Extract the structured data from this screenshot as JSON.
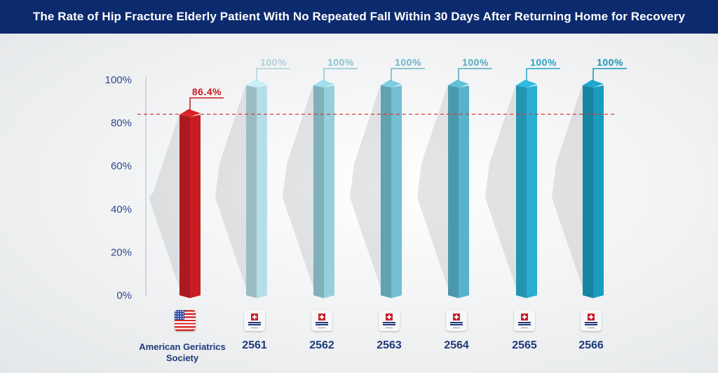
{
  "title": "The Rate of Hip Fracture Elderly Patient With No Repeated Fall Within 30 Days After Returning Home for Recovery",
  "chart_data": {
    "type": "bar",
    "title": "The Rate of Hip Fracture Elderly Patient With No Repeated Fall Within 30 Days After Returning Home for Recovery",
    "categories": [
      "American Geriatrics Society",
      "2561",
      "2562",
      "2563",
      "2564",
      "2565",
      "2566"
    ],
    "values": [
      86.4,
      100,
      100,
      100,
      100,
      100,
      100
    ],
    "value_labels": [
      "86.4%",
      "100%",
      "100%",
      "100%",
      "100%",
      "100%",
      "100%"
    ],
    "xlabel": "",
    "ylabel": "",
    "ylim": [
      0,
      100
    ],
    "yticks": [
      0,
      20,
      40,
      60,
      80,
      100
    ],
    "ytick_labels": [
      "0%",
      "20%",
      "40%",
      "60%",
      "80%",
      "100%"
    ],
    "reference_line": {
      "value": 84,
      "style": "dashed",
      "color": "#d9383a"
    },
    "grid": false,
    "legend": "none",
    "bar_colors": [
      "#c81e23",
      "#b7dde6",
      "#95cfdc",
      "#72bfd1",
      "#58b2c9",
      "#2aaed0",
      "#1a9cbd"
    ],
    "category_icons": [
      "us-flag-icon",
      "bangkok-hospital-logo",
      "bangkok-hospital-logo",
      "bangkok-hospital-logo",
      "bangkok-hospital-logo",
      "bangkok-hospital-logo",
      "bangkok-hospital-logo"
    ]
  },
  "x_labels": [
    "American Geriatrics",
    "Society",
    "2561",
    "2562",
    "2563",
    "2564",
    "2565",
    "2566"
  ]
}
